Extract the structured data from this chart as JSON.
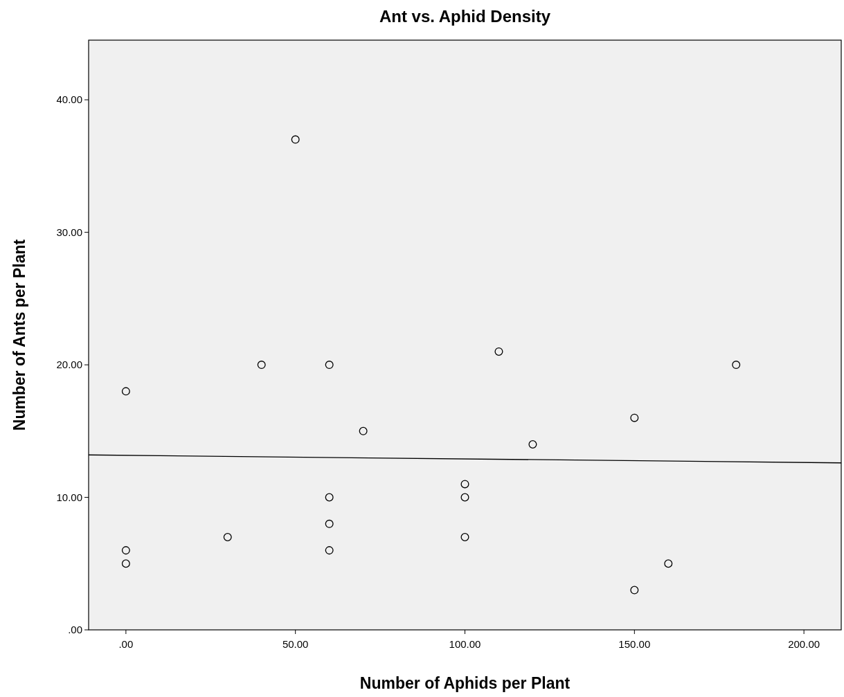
{
  "chart_data": {
    "type": "scatter",
    "title": "Ant vs. Aphid Density",
    "xlabel": "Number of Aphids per Plant",
    "ylabel": "Number of Ants per Plant",
    "xlim": [
      -11,
      211
    ],
    "ylim": [
      0,
      44.5
    ],
    "xticks": [
      {
        "value": 0,
        "label": ".00"
      },
      {
        "value": 50,
        "label": "50.00"
      },
      {
        "value": 100,
        "label": "100.00"
      },
      {
        "value": 150,
        "label": "150.00"
      },
      {
        "value": 200,
        "label": "200.00"
      }
    ],
    "yticks": [
      {
        "value": 0,
        "label": ".00"
      },
      {
        "value": 10,
        "label": "10.00"
      },
      {
        "value": 20,
        "label": "20.00"
      },
      {
        "value": 30,
        "label": "30.00"
      },
      {
        "value": 40,
        "label": "40.00"
      }
    ],
    "grid": false,
    "series": [
      {
        "marker": "circle",
        "color": "#000000",
        "x": [
          0,
          0,
          0,
          30,
          40,
          50,
          60,
          60,
          60,
          60,
          70,
          100,
          100,
          100,
          110,
          120,
          150,
          150,
          160,
          180
        ],
        "values": [
          18,
          6,
          5,
          7,
          20,
          37,
          20,
          10,
          8,
          6,
          15,
          11,
          10,
          7,
          21,
          14,
          16,
          3,
          5,
          20
        ]
      },
      {
        "type": "line",
        "color": "#000000",
        "x": [
          -11,
          211
        ],
        "values": [
          13.2,
          12.6
        ]
      }
    ]
  }
}
